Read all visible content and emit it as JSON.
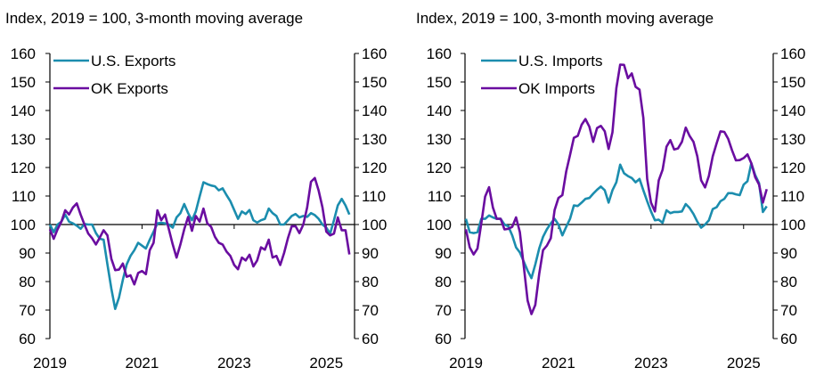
{
  "chart_data": [
    {
      "type": "line",
      "title": "Index, 2019 = 100, 3-month moving average",
      "x_ticks": [
        "2019",
        "2021",
        "2023",
        "2025"
      ],
      "ylim": [
        60,
        160
      ],
      "y_ticks": [
        60,
        70,
        80,
        90,
        100,
        110,
        120,
        130,
        140,
        150,
        160
      ],
      "secondary_y_ticks": [
        60,
        70,
        80,
        90,
        100,
        110,
        120,
        130,
        140,
        150,
        160
      ],
      "reference_line": 100,
      "legend_position": "top-left",
      "x_range": [
        "2019-01",
        "2025-07"
      ],
      "frequency": "monthly",
      "series": [
        {
          "name": "U.S. Exports",
          "color": "#1B8DAE",
          "values": [
            100,
            97.3,
            100,
            101,
            103.5,
            101,
            100.4,
            99.6,
            98.5,
            100.2,
            100,
            100,
            97,
            95,
            94.7,
            86,
            77.5,
            70.4,
            74.4,
            80.6,
            86,
            89,
            91,
            93.6,
            92.6,
            91.6,
            94.7,
            97.5,
            100.4,
            100.6,
            100.4,
            100,
            98.9,
            102.5,
            104,
            107.2,
            104,
            101.5,
            104.6,
            109.8,
            114.8,
            114.2,
            113.7,
            113.4,
            112,
            112.7,
            110.3,
            108.2,
            105.1,
            102,
            104.6,
            103.7,
            105.1,
            101.5,
            100.7,
            101.5,
            102,
            105.6,
            104,
            103,
            100,
            100,
            101.5,
            103,
            103.7,
            102.5,
            103,
            102.7,
            104,
            103.3,
            102,
            100,
            98.9,
            96.8,
            101.5,
            106.7,
            109,
            106.7,
            103.5
          ]
        },
        {
          "name": "OK Exports",
          "color": "#6A0DA0",
          "values": [
            98.3,
            95,
            98.3,
            101,
            105,
            103.5,
            106,
            107.4,
            103.5,
            100,
            96.8,
            95.2,
            93,
            95.4,
            98,
            96.2,
            88,
            84,
            84.2,
            86.3,
            81.7,
            82.2,
            79,
            83,
            83.7,
            82.6,
            91,
            93.6,
            105,
            101.5,
            103.5,
            98.3,
            93,
            88.4,
            93,
            98.3,
            102.7,
            97.8,
            103,
            101,
            105.6,
            100.4,
            99.2,
            95.7,
            93.6,
            93,
            90.5,
            89,
            85.8,
            84.3,
            88.4,
            87.4,
            89.4,
            85.3,
            87.4,
            92,
            91.2,
            94.7,
            88.4,
            89,
            85.8,
            90,
            95.2,
            99.4,
            99.4,
            97,
            100,
            106,
            115,
            116.3,
            111.9,
            106,
            97.5,
            96.2,
            96.8,
            102.5,
            98,
            98,
            89.5
          ]
        }
      ]
    },
    {
      "type": "line",
      "title": "Index, 2019 = 100, 3-month moving average",
      "x_ticks": [
        "2019",
        "2021",
        "2023",
        "2025"
      ],
      "ylim": [
        60,
        160
      ],
      "y_ticks": [
        60,
        70,
        80,
        90,
        100,
        110,
        120,
        130,
        140,
        150,
        160
      ],
      "secondary_y_ticks": [
        60,
        70,
        80,
        90,
        100,
        110,
        120,
        130,
        140,
        150,
        160
      ],
      "reference_line": 100,
      "legend_position": "top-left",
      "x_range": [
        "2019-01",
        "2025-07"
      ],
      "frequency": "monthly",
      "series": [
        {
          "name": "U.S. Imports",
          "color": "#1B8DAE",
          "values": [
            102,
            97.3,
            97,
            97.3,
            102,
            102,
            103.2,
            102.5,
            102,
            102,
            100,
            99.4,
            96.2,
            92,
            90.2,
            87,
            83.8,
            81.2,
            86,
            91.6,
            95.7,
            98.3,
            100.4,
            102,
            100,
            96.2,
            99.2,
            102,
            106.7,
            106.5,
            107.7,
            109,
            109.3,
            110.8,
            112.2,
            113.3,
            112,
            107.7,
            112,
            114.8,
            121,
            118,
            117,
            116.3,
            114.8,
            116,
            112,
            108.2,
            104.6,
            101.5,
            101.7,
            100.6,
            105,
            104,
            104.4,
            104.4,
            104.6,
            107.2,
            105.8,
            103.7,
            101,
            98.9,
            100,
            101.5,
            105.4,
            106.1,
            108.2,
            109,
            111,
            111,
            110.6,
            110.3,
            114,
            115.2,
            121.5,
            117.3,
            114.5,
            104.4,
            106.4
          ]
        },
        {
          "name": "OK Imports",
          "color": "#6A0DA0",
          "values": [
            98.3,
            92,
            89.5,
            91.6,
            100.4,
            109.8,
            113.1,
            106,
            102,
            102,
            98.3,
            98.5,
            99.2,
            102.5,
            97.3,
            85.3,
            73.3,
            68.6,
            71.8,
            82.7,
            91,
            92.6,
            95.2,
            105.1,
            109.3,
            110.3,
            118.6,
            124.4,
            130.4,
            131.1,
            135,
            137,
            134.3,
            129,
            133.8,
            134.6,
            132.7,
            126.5,
            132.3,
            147.8,
            156.1,
            156,
            151.3,
            153,
            148.3,
            147.3,
            137.4,
            116,
            107.7,
            104.6,
            115.5,
            119.2,
            127.3,
            129.6,
            126.3,
            126.7,
            129,
            134,
            131.1,
            129,
            123.9,
            115.5,
            113,
            117.1,
            123.9,
            128.5,
            132.7,
            132.5,
            130.1,
            126,
            122.5,
            122.6,
            123.3,
            124.6,
            121.5,
            116.6,
            114,
            107.7,
            112.4
          ]
        }
      ]
    }
  ]
}
